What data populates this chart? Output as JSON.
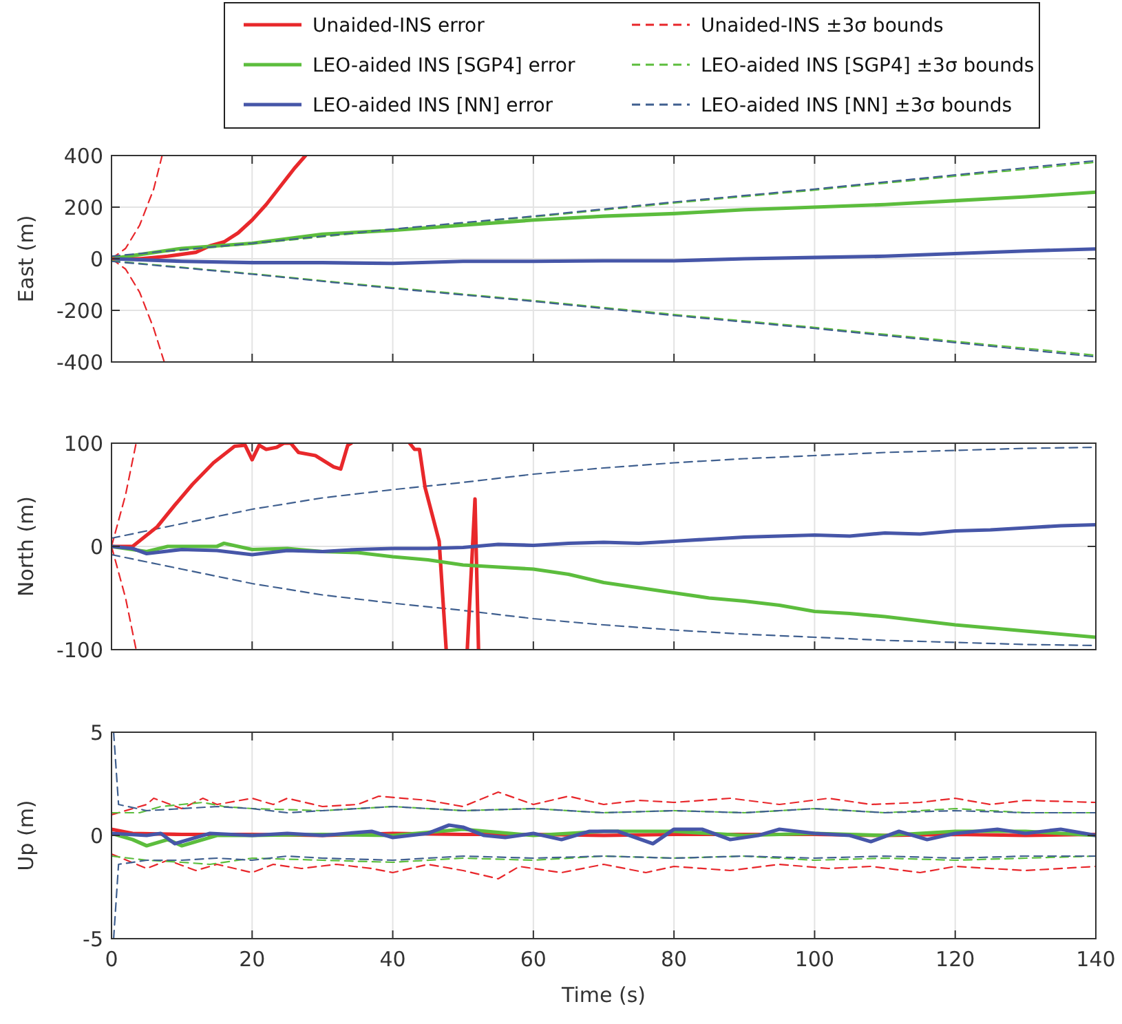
{
  "chart_data": [
    {
      "type": "line",
      "ylabel": "East (m)",
      "xlim": [
        0,
        140
      ],
      "xticks": [
        0,
        20,
        40,
        60,
        80,
        100,
        120,
        140
      ],
      "ylim": [
        -400,
        400
      ],
      "yticks": [
        -400,
        -200,
        0,
        200,
        400
      ],
      "grid": true,
      "legend": "top",
      "tick_labels": "y",
      "series": [
        {
          "name": "Unaided-INS error",
          "color": "#e8282b",
          "x": [
            0,
            4,
            8,
            12,
            14,
            16,
            18,
            20,
            22,
            24,
            26,
            27.6
          ],
          "values": [
            0,
            0,
            10,
            25,
            50,
            65,
            100,
            150,
            210,
            280,
            350,
            400
          ]
        },
        {
          "name": "LEO-aided INS [SGP4] error",
          "color": "#5cbd3d",
          "x": [
            0,
            10,
            20,
            30,
            40,
            50,
            60,
            70,
            80,
            90,
            100,
            110,
            120,
            130,
            140
          ],
          "values": [
            0,
            40,
            60,
            95,
            110,
            130,
            150,
            165,
            175,
            190,
            200,
            210,
            225,
            240,
            258
          ]
        },
        {
          "name": "LEO-aided INS [NN] error",
          "color": "#4656a8",
          "x": [
            0,
            10,
            20,
            30,
            40,
            50,
            60,
            70,
            80,
            90,
            100,
            110,
            120,
            130,
            140
          ],
          "values": [
            0,
            -10,
            -15,
            -15,
            -18,
            -10,
            -10,
            -8,
            -8,
            0,
            5,
            10,
            20,
            30,
            38
          ]
        },
        {
          "name": "Unaided-INS ±3σ bounds",
          "color": "#e8262a",
          "line_style": "dashed",
          "x": [
            0,
            2,
            4,
            6,
            7.2
          ],
          "values": [
            0,
            40,
            130,
            270,
            400
          ]
        },
        {
          "name": "LEO-aided INS [SGP4] ±3σ bounds",
          "color": "#5cbd3d",
          "line_style": "dashed",
          "x": [
            0,
            20,
            40,
            60,
            80,
            100,
            120,
            140
          ],
          "values": [
            8,
            58,
            112,
            162,
            216,
            266,
            320,
            374
          ]
        },
        {
          "name": "LEO-aided INS [NN] ±3σ bounds",
          "color": "#3f5f8f",
          "line_style": "dashed",
          "x": [
            0,
            20,
            40,
            60,
            80,
            100,
            120,
            140
          ],
          "values": [
            10,
            60,
            115,
            165,
            220,
            270,
            325,
            380
          ]
        },
        {
          "color": "#e8262a",
          "line_style": "dashed",
          "x": [
            0,
            2,
            4,
            6,
            7.5
          ],
          "values": [
            0,
            -40,
            -130,
            -270,
            -400
          ]
        },
        {
          "color": "#5cbd3d",
          "line_style": "dashed",
          "x": [
            0,
            20,
            40,
            60,
            80,
            100,
            120,
            140
          ],
          "values": [
            -8,
            -58,
            -112,
            -162,
            -216,
            -266,
            -320,
            -374
          ]
        },
        {
          "color": "#3f5f8f",
          "line_style": "dashed",
          "x": [
            0,
            20,
            40,
            60,
            80,
            100,
            120,
            140
          ],
          "values": [
            -10,
            -60,
            -115,
            -165,
            -220,
            -270,
            -325,
            -380
          ]
        }
      ]
    },
    {
      "type": "line",
      "ylabel": "North (m)",
      "xlim": [
        0,
        140
      ],
      "xticks": [
        0,
        20,
        40,
        60,
        80,
        100,
        120,
        140
      ],
      "ylim": [
        -100,
        100
      ],
      "yticks": [
        -100,
        0,
        100
      ],
      "grid": true,
      "legend": false,
      "tick_labels": "y",
      "series": [
        {
          "color": "#e8262a",
          "line_style": "dashed",
          "x": [
            0,
            2,
            3.5
          ],
          "values": [
            0,
            50,
            100
          ]
        },
        {
          "color": "#e8262a",
          "line_style": "dashed",
          "x": [
            0,
            2,
            3.5
          ],
          "values": [
            0,
            -50,
            -100
          ]
        },
        {
          "color": "#3f5f8f",
          "line_style": "dashed",
          "x": [
            0,
            10,
            20,
            30,
            40,
            50,
            60,
            70,
            80,
            90,
            100,
            110,
            120,
            130,
            140
          ],
          "values": [
            8,
            22,
            36,
            47,
            55,
            62,
            70,
            76,
            81,
            85,
            88,
            91,
            93,
            95,
            96
          ]
        },
        {
          "color": "#3f5f8f",
          "line_style": "dashed",
          "x": [
            0,
            10,
            20,
            30,
            40,
            50,
            60,
            70,
            80,
            90,
            100,
            110,
            120,
            130,
            140
          ],
          "values": [
            -8,
            -22,
            -36,
            -47,
            -55,
            -62,
            -70,
            -76,
            -81,
            -85,
            -88,
            -91,
            -93,
            -95,
            -96
          ]
        },
        {
          "color": "#e8282b",
          "x": [
            0,
            3,
            6.5,
            9,
            11.5,
            14.5,
            17.5,
            19,
            20,
            21,
            22,
            23.5,
            24.5,
            25.5,
            26.6,
            29,
            31.6,
            32.6,
            33.6,
            34.1,
            38,
            42.4,
            43.1,
            43.8,
            44.6,
            46.6,
            47.6,
            49,
            50.6,
            51.7,
            52.2
          ],
          "values": [
            0,
            0,
            19,
            40,
            60,
            81,
            97,
            98,
            84,
            98,
            94,
            96,
            100,
            100,
            91,
            88,
            77,
            75,
            98,
            100,
            null,
            100,
            94,
            94,
            57,
            5,
            -100,
            null,
            -100,
            46,
            -100
          ]
        },
        {
          "color": "#5cbd3d",
          "x": [
            0,
            5,
            8,
            15,
            16,
            20,
            25,
            30,
            35,
            40,
            45,
            50,
            55,
            60,
            65,
            70,
            75,
            80,
            85,
            90,
            95,
            100,
            105,
            110,
            115,
            120,
            125,
            130,
            135,
            140
          ],
          "values": [
            0,
            -5,
            0,
            0,
            3,
            -3,
            -2,
            -5,
            -6,
            -10,
            -13,
            -18,
            -20,
            -22,
            -27,
            -35,
            -40,
            -45,
            -50,
            -53,
            -57,
            -63,
            -65,
            -68,
            -72,
            -76,
            -79,
            -82,
            -85,
            -88
          ]
        },
        {
          "color": "#4656a8",
          "x": [
            0,
            3,
            5,
            10,
            15,
            20,
            25,
            30,
            35,
            40,
            45,
            50,
            55,
            60,
            65,
            70,
            75,
            80,
            85,
            90,
            95,
            100,
            105,
            110,
            115,
            120,
            125,
            130,
            135,
            140
          ],
          "values": [
            0,
            -2,
            -7,
            -3,
            -4,
            -8,
            -4,
            -5,
            -3,
            -2,
            -2,
            -1,
            2,
            1,
            3,
            4,
            3,
            5,
            7,
            9,
            10,
            11,
            10,
            13,
            12,
            15,
            16,
            18,
            20,
            21
          ]
        }
      ]
    },
    {
      "type": "line",
      "xlabel": "Time (s)",
      "ylabel": "Up (m)",
      "xlim": [
        0,
        140
      ],
      "xticks": [
        0,
        20,
        40,
        60,
        80,
        100,
        120,
        140
      ],
      "ylim": [
        -5,
        5
      ],
      "yticks": [
        -5,
        0,
        5
      ],
      "grid": true,
      "legend": false,
      "series": [
        {
          "color": "#e8262a",
          "line_style": "dashed",
          "x": [
            0,
            5,
            6,
            10,
            13,
            15,
            20,
            23,
            25,
            30,
            35,
            38,
            45,
            50,
            55,
            60,
            65,
            70,
            75,
            80,
            88,
            95,
            102,
            108,
            115,
            120,
            125,
            130,
            140
          ],
          "values": [
            1.0,
            1.5,
            1.8,
            1.3,
            1.8,
            1.5,
            1.8,
            1.5,
            1.8,
            1.4,
            1.5,
            1.9,
            1.7,
            1.4,
            2.1,
            1.5,
            1.9,
            1.5,
            1.7,
            1.6,
            1.8,
            1.5,
            1.8,
            1.5,
            1.6,
            1.8,
            1.5,
            1.7,
            1.6
          ]
        },
        {
          "color": "#e8262a",
          "line_style": "dashed",
          "x": [
            0,
            5,
            8,
            12,
            15,
            20,
            23,
            27,
            32,
            37,
            40,
            45,
            50,
            55,
            58,
            64,
            70,
            76,
            80,
            88,
            95,
            102,
            108,
            115,
            120,
            130,
            140
          ],
          "values": [
            -0.9,
            -1.6,
            -1.2,
            -1.7,
            -1.4,
            -1.8,
            -1.4,
            -1.6,
            -1.4,
            -1.6,
            -1.8,
            -1.4,
            -1.7,
            -2.1,
            -1.5,
            -1.8,
            -1.4,
            -1.8,
            -1.5,
            -1.7,
            -1.4,
            -1.6,
            -1.5,
            -1.8,
            -1.5,
            -1.7,
            -1.5
          ]
        },
        {
          "color": "#5cbd3d",
          "line_style": "dashed",
          "x": [
            0,
            4,
            7,
            10,
            13,
            16,
            20,
            30,
            40,
            50,
            60,
            70,
            80,
            90,
            100,
            110,
            120,
            130,
            140
          ],
          "values": [
            1.1,
            1.1,
            1.4,
            1.5,
            1.6,
            1.4,
            1.3,
            1.2,
            1.4,
            1.2,
            1.3,
            1.1,
            1.2,
            1.1,
            1.3,
            1.1,
            1.3,
            1.1,
            1.1
          ]
        },
        {
          "color": "#5cbd3d",
          "line_style": "dashed",
          "x": [
            0,
            5,
            10,
            14,
            20,
            30,
            40,
            50,
            60,
            70,
            80,
            90,
            100,
            110,
            120,
            130,
            140
          ],
          "values": [
            -1.0,
            -1.2,
            -1.3,
            -1.4,
            -1.1,
            -1.2,
            -1.3,
            -1.1,
            -1.2,
            -1.0,
            -1.1,
            -1.0,
            -1.2,
            -1.1,
            -1.2,
            -1.1,
            -1.0
          ]
        },
        {
          "color": "#3f5f8f",
          "line_style": "dashed",
          "x": [
            0.3,
            1,
            5,
            10,
            15,
            20,
            25,
            30,
            40,
            50,
            60,
            70,
            80,
            90,
            100,
            110,
            120,
            130,
            140
          ],
          "values": [
            5,
            1.5,
            1.2,
            1.3,
            1.4,
            1.3,
            1.1,
            1.2,
            1.4,
            1.2,
            1.3,
            1.1,
            1.2,
            1.1,
            1.3,
            1.1,
            1.2,
            1.1,
            1.1
          ]
        },
        {
          "color": "#3f5f8f",
          "line_style": "dashed",
          "x": [
            0.3,
            1,
            5,
            10,
            15,
            20,
            25,
            30,
            40,
            50,
            60,
            70,
            80,
            90,
            100,
            110,
            120,
            130,
            140
          ],
          "values": [
            -5,
            -1.4,
            -1.2,
            -1.2,
            -1.1,
            -1.2,
            -1.0,
            -1.1,
            -1.2,
            -1.0,
            -1.1,
            -1.0,
            -1.1,
            -1.0,
            -1.1,
            -1.0,
            -1.1,
            -1.0,
            -1.0
          ]
        },
        {
          "color": "#e8282b",
          "x": [
            0,
            3,
            10,
            20,
            30,
            40,
            50,
            60,
            70,
            80,
            90,
            100,
            110,
            120,
            130,
            140
          ],
          "values": [
            0.3,
            0.1,
            0.05,
            0.05,
            0,
            0.1,
            0.05,
            0.05,
            0,
            0.05,
            0.05,
            0.05,
            0,
            0.05,
            0,
            0.05
          ]
        },
        {
          "color": "#5cbd3d",
          "x": [
            0,
            3,
            5,
            8,
            10,
            12,
            15,
            20,
            30,
            40,
            50,
            60,
            70,
            80,
            90,
            100,
            110,
            120,
            130,
            140
          ],
          "values": [
            0.1,
            -0.2,
            -0.5,
            -0.2,
            -0.5,
            -0.3,
            0,
            0,
            0.05,
            0,
            0.3,
            0,
            0.2,
            0.2,
            0,
            0.1,
            0,
            0.2,
            0.2,
            0
          ]
        },
        {
          "color": "#4656a8",
          "x": [
            0,
            5,
            7,
            9,
            11,
            14,
            20,
            25,
            30,
            37,
            40,
            45,
            48,
            50,
            53,
            56,
            60,
            64,
            68,
            72,
            77,
            80,
            84,
            88,
            92,
            95,
            100,
            105,
            108,
            112,
            116,
            120,
            126,
            130,
            135,
            140
          ],
          "values": [
            0.1,
            0,
            0.1,
            -0.4,
            -0.2,
            0.1,
            0,
            0.1,
            0,
            0.2,
            -0.1,
            0.1,
            0.5,
            0.4,
            0,
            -0.1,
            0.1,
            -0.2,
            0.2,
            0.2,
            -0.4,
            0.3,
            0.3,
            -0.2,
            0,
            0.3,
            0.1,
            0,
            -0.3,
            0.2,
            -0.2,
            0.1,
            0.3,
            0.1,
            0.3,
            0
          ]
        }
      ]
    }
  ]
}
